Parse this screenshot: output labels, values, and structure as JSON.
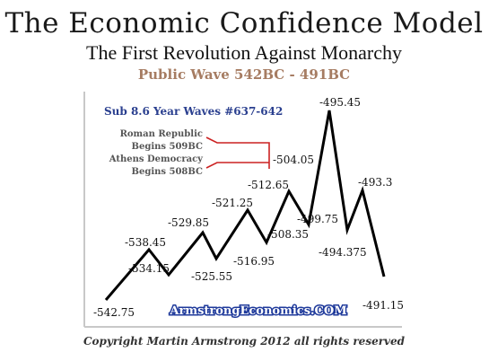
{
  "header": {
    "title": "The Economic Confidence Model",
    "subtitle": "The First Revolution Against Monarchy",
    "wave": "Public Wave 542BC - 491BC"
  },
  "chart_note": "Sub 8.6 Year Waves #637-642",
  "annotations": [
    {
      "line1": "Roman Republic",
      "line2": "Begins 509BC"
    },
    {
      "line1": "Athens Democracy",
      "line2": "Begins 508BC"
    }
  ],
  "footer": {
    "site": "ArmstrongEconomics.COM",
    "copyright": "Copyright Martin Armstrong 2012 all rights reserved"
  },
  "colors": {
    "line": "#000000",
    "annotation_connector": "#cc2222",
    "wave_title": "#a67c62",
    "note": "#2a3f8f"
  },
  "chart_data": {
    "type": "line",
    "points": [
      {
        "label": "-542.75",
        "value": -542.75
      },
      {
        "label": "-538.45",
        "value": -538.45
      },
      {
        "label": "-534.15",
        "value": -534.15
      },
      {
        "label": "-529.85",
        "value": -529.85
      },
      {
        "label": "-525.55",
        "value": -525.55
      },
      {
        "label": "-521.25",
        "value": -521.25
      },
      {
        "label": "-516.95",
        "value": -516.95
      },
      {
        "label": "-512.65",
        "value": -512.65
      },
      {
        "label": "-508.35",
        "value": -508.35
      },
      {
        "label": "-504.05",
        "value": -504.05
      },
      {
        "label": "-499.75",
        "value": -499.75
      },
      {
        "label": "-495.45",
        "value": -495.45
      },
      {
        "label": "-494.375",
        "value": -494.375
      },
      {
        "label": "-493.3",
        "value": -493.3
      },
      {
        "label": "-491.15",
        "value": -491.15
      }
    ],
    "shape": [
      "low",
      "high",
      "low",
      "high",
      "low",
      "high",
      "low",
      "high",
      "low",
      "high",
      "low",
      "high",
      "low",
      "high",
      "low"
    ],
    "axes": {
      "grid": false,
      "ticks": false
    }
  }
}
